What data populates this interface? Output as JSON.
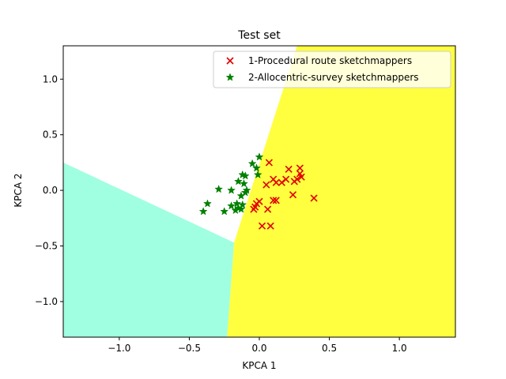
{
  "chart_data": {
    "type": "scatter",
    "title": "Test set",
    "xlabel": "KPCA 1",
    "ylabel": "KPCA 2",
    "xlim": [
      -1.4,
      1.4
    ],
    "ylim": [
      -1.32,
      1.3
    ],
    "x_ticks": [
      -1.0,
      -0.5,
      0.0,
      0.5,
      1.0
    ],
    "x_tick_labels": [
      "−1.0",
      "−0.5",
      "0.0",
      "0.5",
      "1.0"
    ],
    "y_ticks": [
      -1.0,
      -0.5,
      0.0,
      0.5,
      1.0
    ],
    "y_tick_labels": [
      "−1.0",
      "−0.5",
      "0.0",
      "0.5",
      "1.0"
    ],
    "grid": false,
    "legend_position": "top-right",
    "decision_regions": [
      {
        "color": "#a0ffe0",
        "polygon": [
          [
            -1.4,
            0.25
          ],
          [
            -0.18,
            -0.47
          ],
          [
            -0.23,
            -1.32
          ],
          [
            -1.4,
            -1.32
          ]
        ]
      },
      {
        "color": "#ffff40",
        "polygon": [
          [
            0.27,
            1.3
          ],
          [
            1.4,
            1.3
          ],
          [
            1.4,
            -1.32
          ],
          [
            -0.23,
            -1.32
          ],
          [
            -0.18,
            -0.47
          ]
        ]
      }
    ],
    "series": [
      {
        "name": "1-Procedural route sketchmappers",
        "marker": "x",
        "color": "#e00000",
        "points": [
          [
            0.07,
            0.25
          ],
          [
            0.21,
            0.19
          ],
          [
            0.29,
            0.2
          ],
          [
            0.29,
            0.15
          ],
          [
            0.3,
            0.12
          ],
          [
            0.27,
            0.1
          ],
          [
            0.25,
            0.08
          ],
          [
            0.19,
            0.1
          ],
          [
            0.16,
            0.07
          ],
          [
            0.1,
            0.1
          ],
          [
            0.12,
            0.07
          ],
          [
            0.05,
            0.05
          ],
          [
            0.24,
            -0.04
          ],
          [
            0.39,
            -0.07
          ],
          [
            0.0,
            -0.1
          ],
          [
            -0.02,
            -0.12
          ],
          [
            -0.03,
            -0.15
          ],
          [
            -0.04,
            -0.17
          ],
          [
            0.06,
            -0.17
          ],
          [
            0.1,
            -0.09
          ],
          [
            0.12,
            -0.09
          ],
          [
            0.02,
            -0.32
          ],
          [
            0.08,
            -0.32
          ]
        ]
      },
      {
        "name": "2-Allocentric-survey sketchmappers",
        "marker": "star",
        "color": "#008000",
        "points": [
          [
            0.0,
            0.3
          ],
          [
            -0.05,
            0.24
          ],
          [
            -0.02,
            0.2
          ],
          [
            -0.01,
            0.14
          ],
          [
            -0.12,
            0.14
          ],
          [
            -0.1,
            0.13
          ],
          [
            -0.15,
            0.08
          ],
          [
            -0.11,
            0.06
          ],
          [
            -0.2,
            0.0
          ],
          [
            -0.29,
            0.01
          ],
          [
            -0.09,
            0.0
          ],
          [
            -0.1,
            -0.02
          ],
          [
            -0.13,
            -0.05
          ],
          [
            -0.37,
            -0.12
          ],
          [
            -0.16,
            -0.12
          ],
          [
            -0.12,
            -0.13
          ],
          [
            -0.2,
            -0.14
          ],
          [
            -0.15,
            -0.16
          ],
          [
            -0.13,
            -0.17
          ],
          [
            -0.4,
            -0.19
          ],
          [
            -0.25,
            -0.19
          ],
          [
            -0.17,
            -0.18
          ]
        ]
      }
    ]
  }
}
